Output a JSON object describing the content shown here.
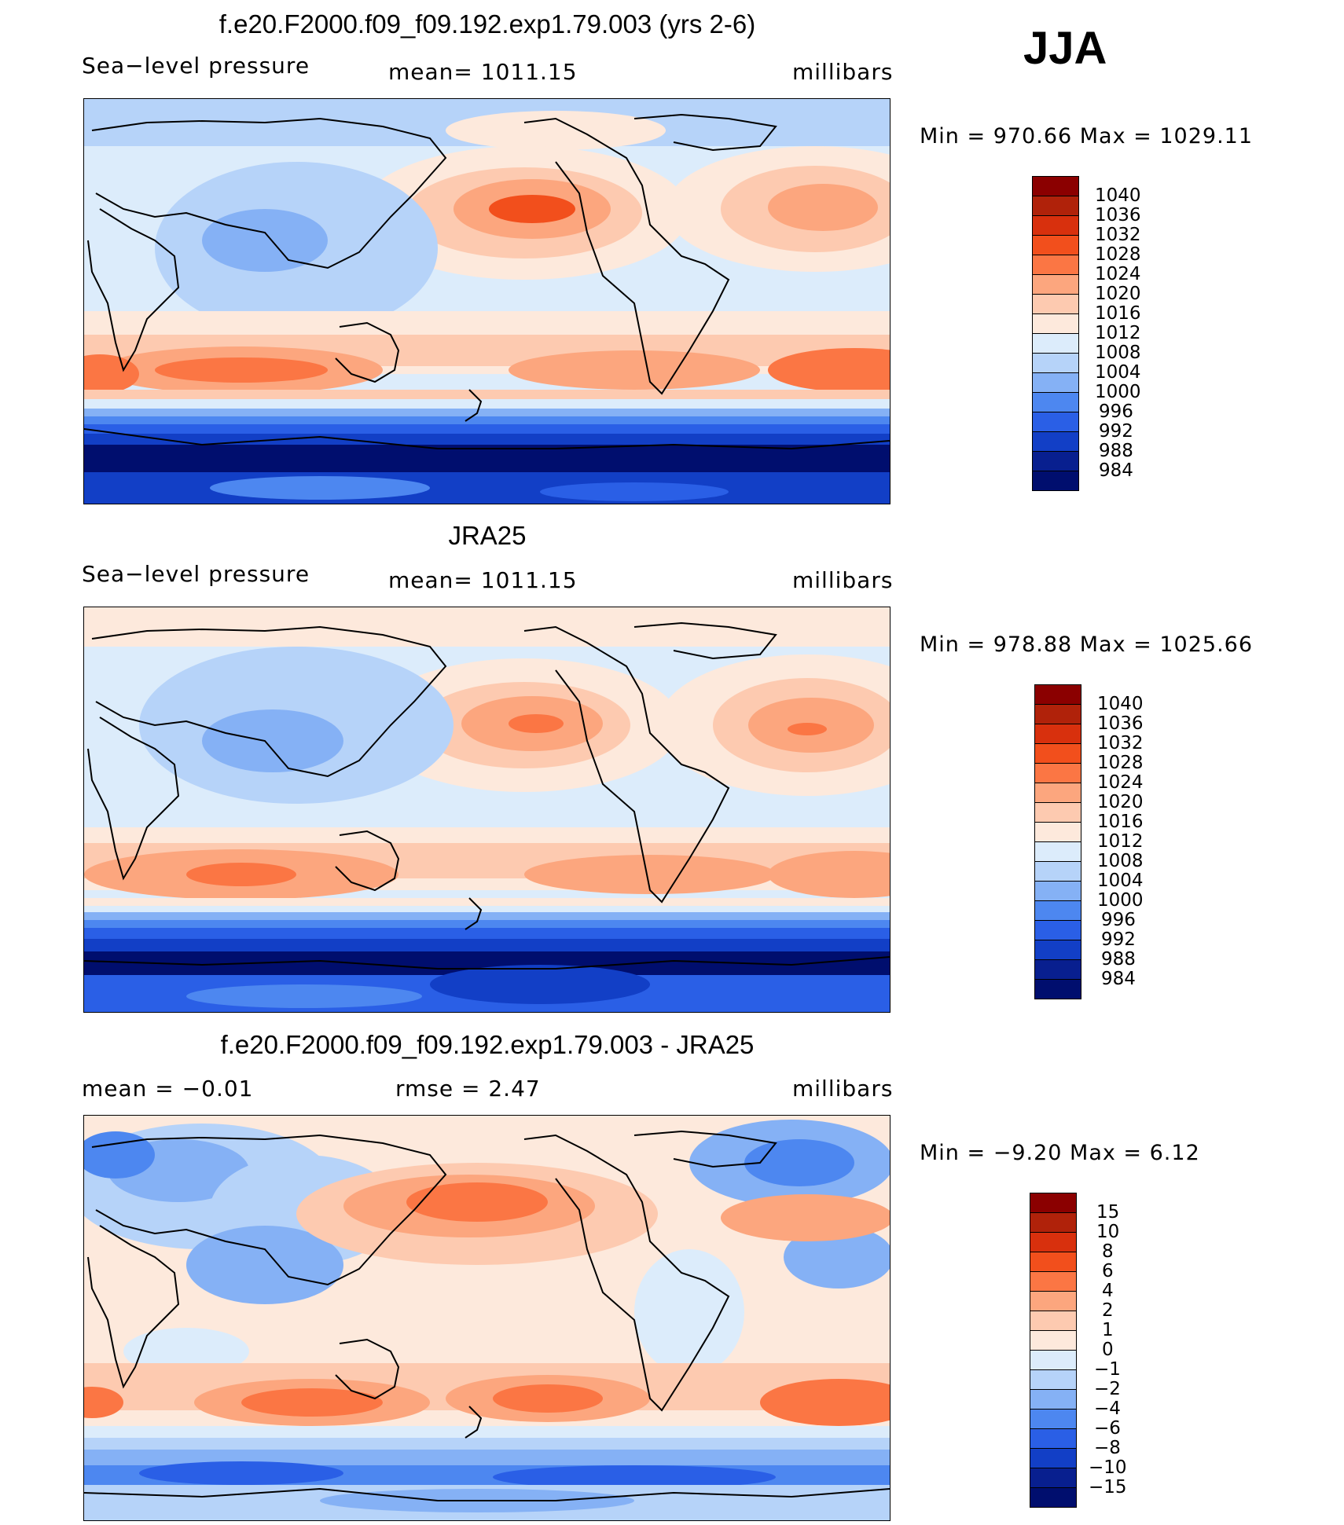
{
  "season": "JJA",
  "panels": [
    {
      "title": "f.e20.F2000.f09_f09.192.exp1.79.003 (yrs 2-6)",
      "left_label": "Sea−level  pressure",
      "center_label": "mean=  1011.15",
      "units": "millibars",
      "minmax": "Min  =  970.66  Max  =  1029.11",
      "colorbar": [
        "1040",
        "1036",
        "1032",
        "1028",
        "1024",
        "1020",
        "1016",
        "1012",
        "1008",
        "1004",
        "1000",
        "996",
        "992",
        "988",
        "984"
      ]
    },
    {
      "title": "JRA25",
      "left_label": "Sea−level  pressure",
      "center_label": "mean=  1011.15",
      "units": "millibars",
      "minmax": "Min  =  978.88  Max  =  1025.66",
      "colorbar": [
        "1040",
        "1036",
        "1032",
        "1028",
        "1024",
        "1020",
        "1016",
        "1012",
        "1008",
        "1004",
        "1000",
        "996",
        "992",
        "988",
        "984"
      ]
    },
    {
      "title": "f.e20.F2000.f09_f09.192.exp1.79.003 - JRA25",
      "left_label": "mean  =    −0.01",
      "center_label": "rmse  =     2.47",
      "units": "millibars",
      "minmax": "Min  =    −9.20  Max  =      6.12",
      "colorbar": [
        "15",
        "10",
        "8",
        "6",
        "4",
        "2",
        "1",
        "0",
        "−1",
        "−2",
        "−4",
        "−6",
        "−8",
        "−10",
        "−15"
      ]
    }
  ],
  "colors": [
    "#8b0000",
    "#b0220a",
    "#d8300d",
    "#f24f1c",
    "#fb7644",
    "#fca67e",
    "#fdcab0",
    "#fde9dc",
    "#dcecfb",
    "#b6d3f9",
    "#85b1f5",
    "#4d87f0",
    "#2a5fe6",
    "#123fc6",
    "#081f8f",
    "#000e6e"
  ]
}
